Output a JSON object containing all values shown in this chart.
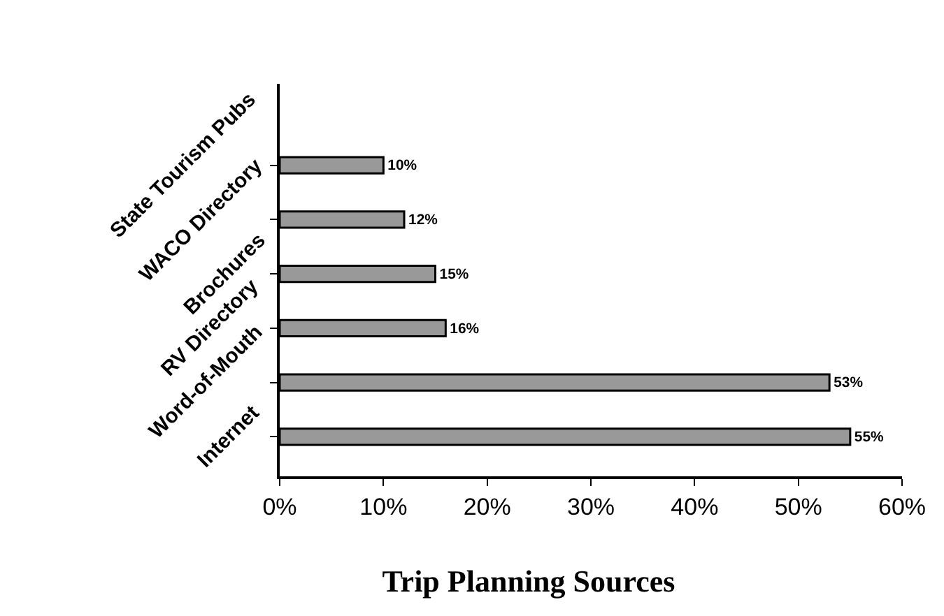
{
  "chart_data": {
    "type": "bar",
    "orientation": "horizontal",
    "title": "Trip Planning Sources",
    "categories": [
      "State Tourism Pubs",
      "WACO Directory",
      "Brochures",
      "RV Directory",
      "Word-of-Mouth",
      "Internet"
    ],
    "values": [
      10,
      12,
      15,
      16,
      53,
      55
    ],
    "value_labels": [
      "10%",
      "12%",
      "15%",
      "16%",
      "53%",
      "55%"
    ],
    "color": "#999999",
    "xlim": [
      0,
      60
    ],
    "xticks": [
      {
        "value": 0,
        "label": "0%"
      },
      {
        "value": 10,
        "label": "10%"
      },
      {
        "value": 20,
        "label": "20%"
      },
      {
        "value": 30,
        "label": "30%"
      },
      {
        "value": 40,
        "label": "40%"
      },
      {
        "value": 50,
        "label": "50%"
      },
      {
        "value": 60,
        "label": "60%"
      }
    ],
    "legend": false
  }
}
